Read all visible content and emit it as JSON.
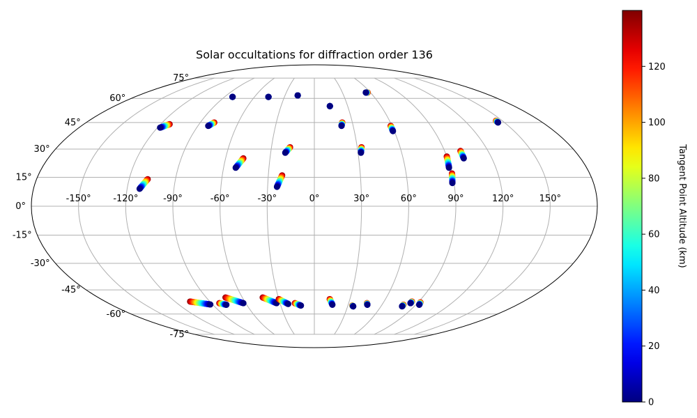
{
  "chart_data": {
    "type": "scatter",
    "projection": "mollweide",
    "title": "Solar occultations for diffraction order 136",
    "grid": true,
    "lon_ticks": [
      -150,
      -120,
      -90,
      -60,
      -30,
      0,
      30,
      60,
      90,
      120,
      150
    ],
    "lat_ticks": [
      -75,
      -60,
      -45,
      -30,
      -15,
      0,
      15,
      30,
      45,
      60,
      75
    ],
    "lon_tick_labels": [
      "-150°",
      "-120°",
      "-90°",
      "-60°",
      "-30°",
      "0°",
      "30°",
      "60°",
      "90°",
      "120°",
      "150°"
    ],
    "lat_tick_labels": [
      "-75°",
      "-60°",
      "-45°",
      "-30°",
      "-15°",
      "0°",
      "15°",
      "30°",
      "45°",
      "60°",
      "75°"
    ],
    "colorbar": {
      "label": "Tangent Point Altitude (km)",
      "range": [
        0,
        140
      ],
      "ticks": [
        0,
        20,
        40,
        60,
        80,
        100,
        120
      ],
      "tick_labels": [
        "0",
        "20",
        "40",
        "60",
        "80",
        "100",
        "120"
      ],
      "colormap": "jet"
    },
    "occultations": [
      {
        "start": [
          -82,
          61
        ],
        "end": [
          -82,
          61
        ]
      },
      {
        "start": [
          -46,
          61
        ],
        "end": [
          -46,
          61
        ]
      },
      {
        "start": [
          -17,
          62
        ],
        "end": [
          -17,
          62
        ]
      },
      {
        "start": [
          -118,
          42
        ],
        "end": [
          -113,
          44
        ]
      },
      {
        "start": [
          -82,
          43
        ],
        "end": [
          -79,
          45
        ]
      },
      {
        "start": [
          -52,
          20
        ],
        "end": [
          -48,
          25
        ]
      },
      {
        "start": [
          -20,
          28
        ],
        "end": [
          -17,
          31
        ]
      },
      {
        "start": [
          -24,
          10
        ],
        "end": [
          -21,
          16
        ]
      },
      {
        "start": [
          -112,
          9
        ],
        "end": [
          -108,
          14
        ]
      },
      {
        "start": [
          14,
          55
        ],
        "end": [
          14,
          55
        ]
      },
      {
        "start": [
          21,
          43
        ],
        "end": [
          22,
          45
        ]
      },
      {
        "start": [
          32,
          28
        ],
        "end": [
          33,
          31
        ]
      },
      {
        "start": [
          55,
          64
        ],
        "end": [
          57,
          64
        ]
      },
      {
        "start": [
          59,
          40
        ],
        "end": [
          59,
          43
        ]
      },
      {
        "start": [
          89,
          20
        ],
        "end": [
          90,
          26
        ]
      },
      {
        "start": [
          89,
          12
        ],
        "end": [
          90,
          17
        ]
      },
      {
        "start": [
          101,
          25
        ],
        "end": [
          101,
          29
        ]
      },
      {
        "start": [
          145,
          45
        ],
        "end": [
          145,
          46
        ]
      },
      {
        "start": [
          -92,
          -53.8
        ],
        "end": [
          -107,
          -52
        ]
      },
      {
        "start": [
          -78,
          -54
        ],
        "end": [
          -83,
          -53
        ]
      },
      {
        "start": [
          -62,
          -53
        ],
        "end": [
          -74,
          -49.5
        ]
      },
      {
        "start": [
          -33,
          -53
        ],
        "end": [
          -43,
          -49.5
        ]
      },
      {
        "start": [
          -23,
          -53.5
        ],
        "end": [
          -30,
          -50.5
        ]
      },
      {
        "start": [
          -12,
          -54.5
        ],
        "end": [
          -17,
          -53
        ]
      },
      {
        "start": [
          16,
          -54
        ],
        "end": [
          13,
          -50.5
        ]
      },
      {
        "start": [
          35,
          -55
        ],
        "end": [
          34,
          -54.5
        ]
      },
      {
        "start": [
          47,
          -54
        ],
        "end": [
          46,
          -53
        ]
      },
      {
        "start": [
          79,
          -55
        ],
        "end": [
          79,
          -54
        ]
      },
      {
        "start": [
          84,
          -53
        ],
        "end": [
          84,
          -52
        ]
      },
      {
        "start": [
          93,
          -54
        ],
        "end": [
          92,
          -52.5
        ]
      }
    ]
  }
}
